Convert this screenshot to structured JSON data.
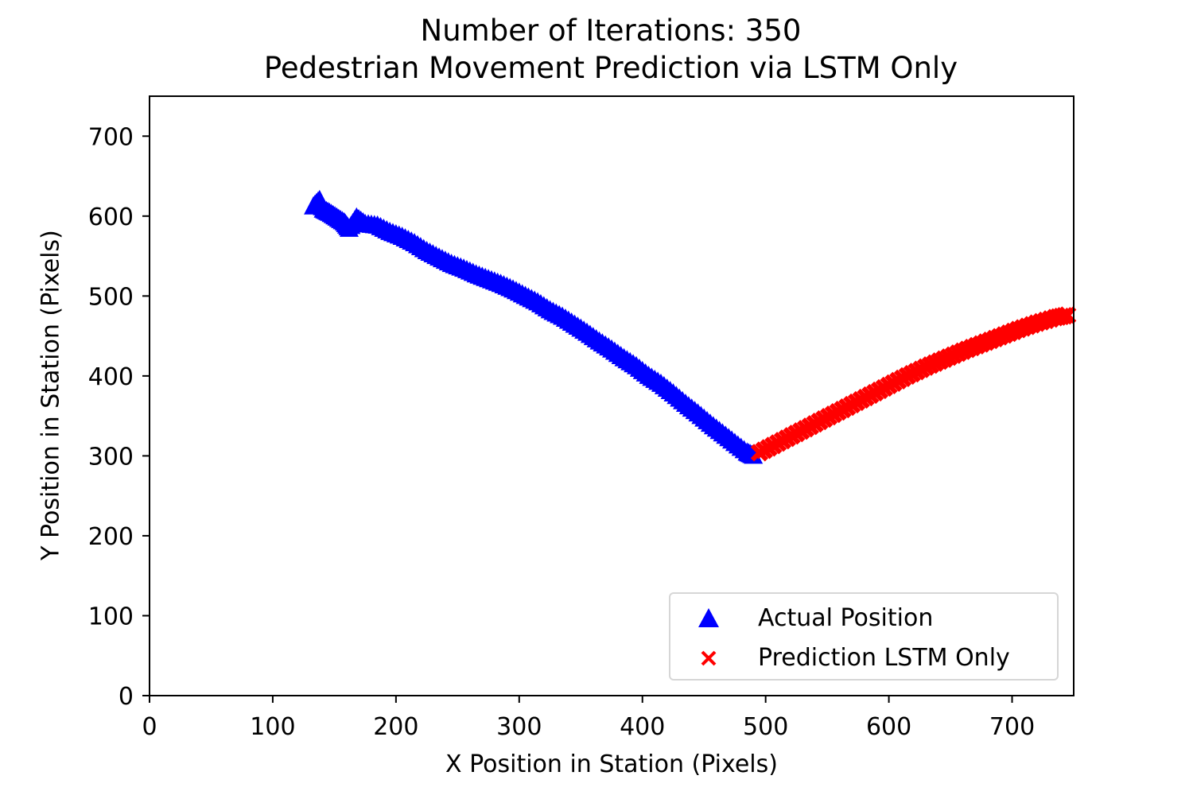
{
  "chart_data": {
    "type": "scatter",
    "title_line1": "Number of Iterations: 350",
    "title_line2": "Pedestrian Movement Prediction via LSTM Only",
    "xlabel": "X Position in Station (Pixels)",
    "ylabel": "Y Position in Station (Pixels)",
    "xlim": [
      0,
      750
    ],
    "ylim": [
      0,
      750
    ],
    "xticks": [
      0,
      100,
      200,
      300,
      400,
      500,
      600,
      700
    ],
    "yticks": [
      0,
      100,
      200,
      300,
      400,
      500,
      600,
      700
    ],
    "grid": false,
    "legend_position": "lower-right",
    "series": [
      {
        "name": "Actual Position",
        "marker": "triangle",
        "color": "#0000ff",
        "points": [
          [
            133,
            612
          ],
          [
            138,
            620
          ],
          [
            141,
            608
          ],
          [
            146,
            604
          ],
          [
            152,
            598
          ],
          [
            158,
            592
          ],
          [
            162,
            584
          ],
          [
            168,
            598
          ],
          [
            175,
            590
          ],
          [
            185,
            588
          ],
          [
            195,
            580
          ],
          [
            205,
            574
          ],
          [
            215,
            566
          ],
          [
            225,
            556
          ],
          [
            235,
            548
          ],
          [
            245,
            540
          ],
          [
            255,
            534
          ],
          [
            265,
            527
          ],
          [
            275,
            521
          ],
          [
            285,
            515
          ],
          [
            295,
            508
          ],
          [
            305,
            500
          ],
          [
            315,
            492
          ],
          [
            325,
            482
          ],
          [
            335,
            474
          ],
          [
            345,
            464
          ],
          [
            355,
            454
          ],
          [
            365,
            443
          ],
          [
            375,
            433
          ],
          [
            385,
            422
          ],
          [
            395,
            412
          ],
          [
            405,
            400
          ],
          [
            415,
            390
          ],
          [
            425,
            378
          ],
          [
            435,
            365
          ],
          [
            445,
            353
          ],
          [
            455,
            340
          ],
          [
            465,
            328
          ],
          [
            475,
            316
          ],
          [
            485,
            304
          ],
          [
            490,
            300
          ]
        ]
      },
      {
        "name": "Prediction LSTM Only",
        "marker": "x",
        "color": "#ff0000",
        "points": [
          [
            495,
            304
          ],
          [
            510,
            316
          ],
          [
            525,
            328
          ],
          [
            540,
            340
          ],
          [
            555,
            352
          ],
          [
            570,
            364
          ],
          [
            585,
            376
          ],
          [
            600,
            388
          ],
          [
            615,
            400
          ],
          [
            630,
            411
          ],
          [
            645,
            421
          ],
          [
            660,
            431
          ],
          [
            675,
            440
          ],
          [
            690,
            449
          ],
          [
            705,
            458
          ],
          [
            720,
            466
          ],
          [
            735,
            473
          ],
          [
            745,
            476
          ]
        ]
      }
    ]
  }
}
